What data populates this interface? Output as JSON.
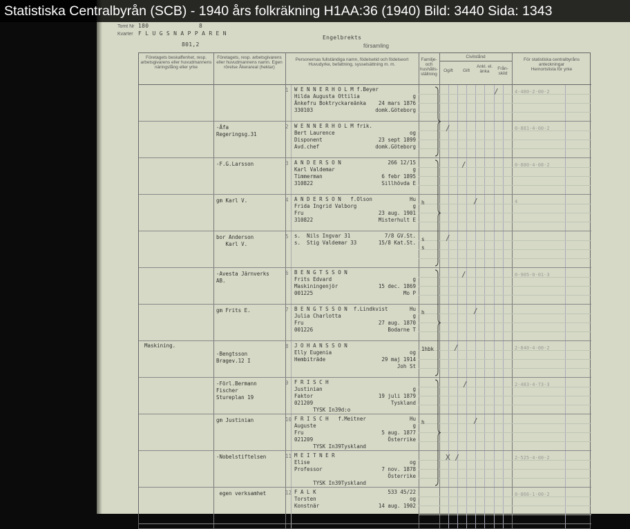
{
  "title_bar": "Statistiska Centralbyrån (SCB) - 1940 års folkräkning H1AA:36 (1940) Bild: 3440 Sida: 1343",
  "form": {
    "tomt_label": "Tomt Nr",
    "tomt_value": "180",
    "tomt_extra": "8",
    "kvarter_label": "Kvarter",
    "kvarter_value": "F L U G S N A P P A R E N",
    "page_code": "801,2",
    "parish": "Engelbrekts",
    "parish_label": "församling"
  },
  "headers": {
    "col1": "Företagets beskaffenhet, resp. arbetsgivarens eller huvudmannens näringsfång eller yrke",
    "col2": "Företagets, resp. arbetsgivarens eller huvudmannens namn. Egen rörelse Åkerareal (hektar)",
    "col3": "Personernas fullständiga namn, födelsetid och födelseort Huvudyrke, befattning, sysselsättning m. m.",
    "col4": "Familje- och hushålls-ställning",
    "civil": "Civilstånd",
    "ogift": "Ogift",
    "gift": "Gift",
    "ankl": "Ankl. el. änka",
    "fran": "Från-skild",
    "stat": "För statistiska centralbyråns anteckningar",
    "stat_sub": "Hemortslista för yrke"
  },
  "rows": [
    {
      "nr": "1",
      "c1": "",
      "c2": "",
      "lines": [
        [
          "W E N N E R H O L M f.Beyer",
          ""
        ],
        [
          "Hilda Augusta Ottilia",
          "g"
        ],
        [
          "Änkefru Boktryckareänka",
          "24 mars 1876"
        ],
        [
          "330103",
          "domk.Göteborg"
        ]
      ],
      "fam": "",
      "code": "4-480-2-00-2",
      "mark": "/",
      "markx": 510
    },
    {
      "nr": "2",
      "c1": "",
      "c2": "-Äfa\nRegeringsg.31",
      "lines": [
        [
          "W E N N E R H O L M frik.",
          ""
        ],
        [
          "Bert Laurence",
          "og"
        ],
        [
          "Disponent",
          "23 sept 1899"
        ],
        [
          "Avd.chef",
          "domk.Göteborg"
        ]
      ],
      "fam": "",
      "code": "0-881-4-00-2",
      "mark": "/",
      "markx": 440
    },
    {
      "nr": "3",
      "c1": "",
      "c2": "-F.G.Larsson",
      "lines": [
        [
          "A N D E R S O N",
          "266 12/15"
        ],
        [
          "Karl Valdemar",
          "g"
        ],
        [
          "Timmerman",
          "6 febr 1895"
        ],
        [
          "310822",
          "Sillhövda E"
        ]
      ],
      "fam": "",
      "code": "0-880-4-08-2",
      "mark": "/",
      "markx": 463
    },
    {
      "nr": "4",
      "c1": "",
      "c2": "gm Karl V.",
      "lines": [
        [
          "A N D E R S O N   f.Olson",
          "Hu"
        ],
        [
          "Frida Ingrid Valborg",
          "g"
        ],
        [
          "Fru",
          "23 aug. 1901"
        ],
        [
          "310822",
          "Misterhult E"
        ]
      ],
      "fam": "h",
      "code": "4",
      "mark": "/",
      "markx": 480
    },
    {
      "nr": "5",
      "c1": "",
      "c2": "bor Anderson\n   Karl V.",
      "lines": [
        [
          "s.  Nils Ingvar 31",
          "7/8 GV.St."
        ],
        [
          "s.  Stig Valdemar 33",
          "15/8 Kat.St."
        ]
      ],
      "fam": "s\ns",
      "code": "",
      "mark": "/",
      "markx": 440
    },
    {
      "nr": "6",
      "c1": "",
      "c2": "-Avesta Järnverks\nAB.",
      "lines": [
        [
          "B E N G T S S O N",
          ""
        ],
        [
          "Frits Edvard",
          "g"
        ],
        [
          "Maskiningenjör",
          "15 dec. 1869"
        ],
        [
          "001225",
          "Mo P"
        ]
      ],
      "fam": "",
      "code": "0-905-0-01-3",
      "mark": "/",
      "markx": 463
    },
    {
      "nr": "7",
      "c1": "",
      "c2": "gm Frits E.",
      "lines": [
        [
          "B E N G T S S O N  f.Lindkvist",
          "Hu"
        ],
        [
          "Julia Charlotta",
          "g"
        ],
        [
          "Fru",
          "27 aug. 1870"
        ],
        [
          "001226",
          "Bodarne T"
        ]
      ],
      "fam": "h",
      "code": "",
      "mark": "/",
      "markx": 480
    },
    {
      "nr": "8",
      "c1": "Maskining.",
      "c2": "\n-Bengtsson\nBragev.12 I",
      "lines": [
        [
          "J O H A N S S O N",
          ""
        ],
        [
          "Elly Eugenia",
          "og"
        ],
        [
          "Hembiträde",
          "29 maj 1914"
        ],
        [
          "",
          "Joh St"
        ]
      ],
      "fam": "1hbk",
      "code": "2-840-4-00-2",
      "mark": "/",
      "markx": 452
    },
    {
      "nr": "9",
      "c1": "",
      "c2": "-Förl.Bermann\nFischer\nStureplan 19",
      "lines": [
        [
          "F R I S C H",
          ""
        ],
        [
          "Justinian",
          "g"
        ],
        [
          "Faktor",
          "19 juli 1879"
        ],
        [
          "021209",
          "Tyskland"
        ],
        [
          "      TYSK In39d:o",
          ""
        ]
      ],
      "fam": "",
      "code": "2-483-4-73-3",
      "mark": "/",
      "markx": 465
    },
    {
      "nr": "10",
      "c1": "",
      "c2": "gm Justinian",
      "lines": [
        [
          "F R I S C H   f.Meitner",
          "Hu"
        ],
        [
          "Auguste",
          "g"
        ],
        [
          "Fru",
          "5 aug. 1877"
        ],
        [
          "021209",
          "Österrike"
        ],
        [
          "      TYSK In39Tyskland",
          ""
        ]
      ],
      "fam": "h",
      "code": "",
      "mark": "/",
      "markx": 480
    },
    {
      "nr": "11",
      "c1": "",
      "c2": "-Nobelstiftelsen",
      "lines": [
        [
          "M E I T N E R",
          ""
        ],
        [
          "Elise",
          "og"
        ],
        [
          "Professor",
          "7 nov. 1878"
        ],
        [
          "",
          "Österrike"
        ],
        [
          "      TYSK In39Tyskland",
          ""
        ]
      ],
      "fam": "",
      "code": "2-525-4-00-2",
      "mark": "X /",
      "markx": 440
    },
    {
      "nr": "12",
      "c1": "",
      "c2": " egen verksamhet",
      "lines": [
        [
          "F A L K",
          "533 45/22"
        ],
        [
          "Torsten",
          "og"
        ],
        [
          "Konstnär",
          "14 aug. 1902"
        ]
      ],
      "fam": "",
      "code": "0-866-1-00-2",
      "mark": "",
      "markx": 0
    }
  ]
}
